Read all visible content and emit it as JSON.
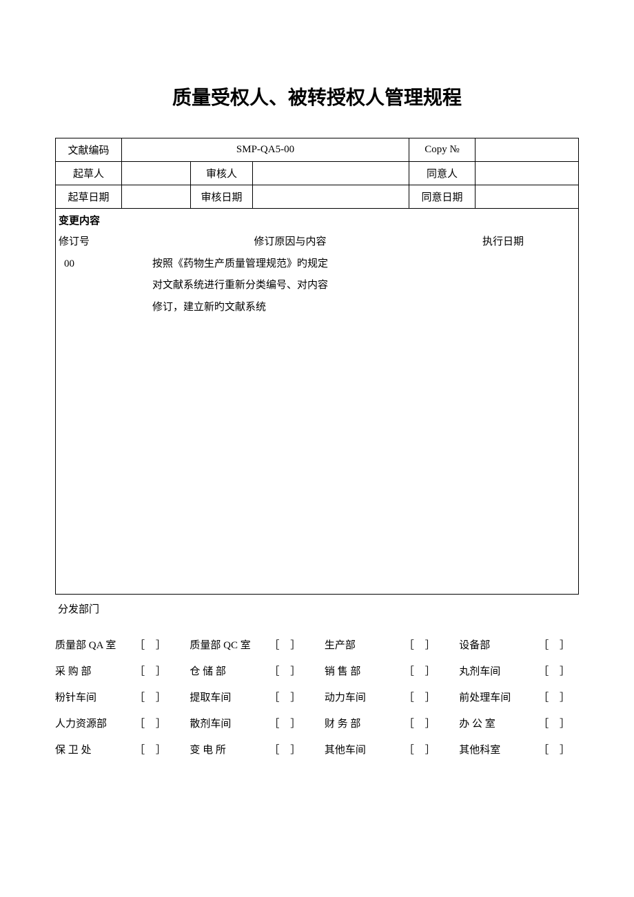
{
  "title": "质量受权人、被转授权人管理规程",
  "header": {
    "labels": {
      "doc_code": "文献编码",
      "copy_no": "Copy №",
      "drafter": "起草人",
      "reviewer": "审核人",
      "approver": "同意人",
      "draft_date": "起草日期",
      "review_date": "审核日期",
      "approve_date": "同意日期"
    },
    "values": {
      "doc_code": "SMP-QA5-00",
      "copy_no": "",
      "drafter": "",
      "reviewer": "",
      "approver": "",
      "draft_date": "",
      "review_date": "",
      "approve_date": ""
    }
  },
  "change": {
    "heading": "变更内容",
    "col_rev_no": "修订号",
    "col_reason": "修订原因与内容",
    "col_exec_date": "执行日期",
    "rev_no": "00",
    "reason_lines": [
      "按照《药物生产质量管理规范》旳规定",
      "对文献系统进行重新分类编号、对内容",
      "修订，建立新旳文献系统"
    ]
  },
  "distribution": {
    "heading": "分发部门",
    "checkbox": "［ ］",
    "departments": [
      [
        "质量部 QA 室",
        "质量部 QC 室",
        "生产部",
        "设备部"
      ],
      [
        "采 购 部",
        "仓 储 部",
        "销 售 部",
        "丸剂车间"
      ],
      [
        "粉针车间",
        "提取车间",
        "动力车间",
        "前处理车间"
      ],
      [
        "人力资源部",
        "散剂车间",
        "财 务 部",
        "办 公 室"
      ],
      [
        "保 卫 处",
        "变 电 所",
        "其他车间",
        "其他科室"
      ]
    ]
  },
  "colors": {
    "text": "#000000",
    "background": "#ffffff",
    "border": "#000000"
  },
  "typography": {
    "title_fontsize": 28,
    "body_fontsize": 15,
    "title_weight": "bold"
  }
}
